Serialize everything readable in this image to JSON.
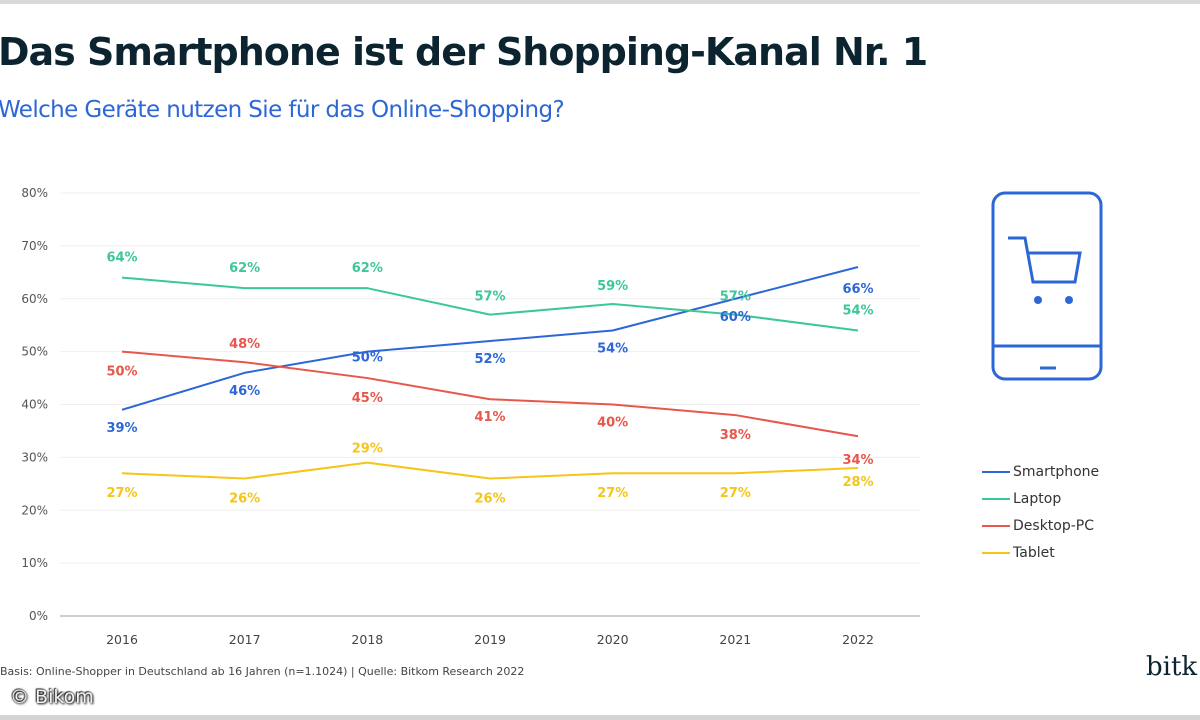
{
  "header": {
    "title": "Das Smartphone ist der Shopping-Kanal Nr. 1",
    "subtitle": "Welche Geräte nutzen Sie für das Online-Shopping?"
  },
  "footer": {
    "note": "Basis: Online-Shopper in Deutschland ab 16 Jahren (n=1.1024) | Quelle: Bitkom Research 2022",
    "watermark": "© Bikom",
    "logo": "bitk"
  },
  "icon": {
    "name": "smartphone-shopping-cart-icon",
    "color": "#2d67d6"
  },
  "chart_data": {
    "type": "line",
    "title": "Das Smartphone ist der Shopping-Kanal Nr. 1",
    "subtitle": "Welche Geräte nutzen Sie für das Online-Shopping?",
    "xlabel": "",
    "ylabel": "",
    "x": [
      "2016",
      "2017",
      "2018",
      "2019",
      "2020",
      "2021",
      "2022"
    ],
    "ylim": [
      0,
      80
    ],
    "yticks": [
      0,
      10,
      20,
      30,
      40,
      50,
      60,
      70,
      80
    ],
    "ytick_labels": [
      "0%",
      "10%",
      "20%",
      "30%",
      "40%",
      "50%",
      "60%",
      "70%",
      "80%"
    ],
    "grid": true,
    "legend_position": "right",
    "series": [
      {
        "name": "Smartphone",
        "color": "#2d67d6",
        "values": [
          39,
          46,
          50,
          52,
          54,
          60,
          66
        ],
        "labels": [
          "39%",
          "46%",
          "50%",
          "52%",
          "54%",
          "60%",
          "66%"
        ]
      },
      {
        "name": "Laptop",
        "color": "#3cc79a",
        "values": [
          64,
          62,
          62,
          57,
          59,
          57,
          54
        ],
        "labels": [
          "64%",
          "62%",
          "62%",
          "57%",
          "59%",
          "57%",
          "54%"
        ]
      },
      {
        "name": "Desktop-PC",
        "color": "#e8574b",
        "values": [
          50,
          48,
          45,
          41,
          40,
          38,
          34
        ],
        "labels": [
          "50%",
          "48%",
          "45%",
          "41%",
          "40%",
          "38%",
          "34%"
        ]
      },
      {
        "name": "Tablet",
        "color": "#f5c518",
        "values": [
          27,
          26,
          29,
          26,
          27,
          27,
          28
        ],
        "labels": [
          "27%",
          "26%",
          "29%",
          "26%",
          "27%",
          "27%",
          "28%"
        ]
      }
    ]
  }
}
